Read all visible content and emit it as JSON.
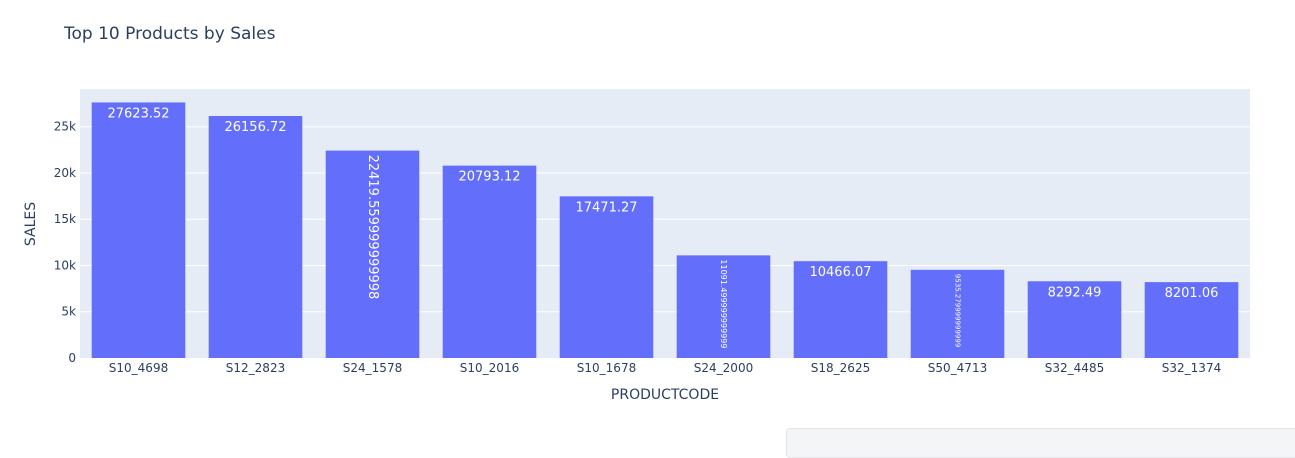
{
  "chart_data": {
    "type": "bar",
    "title": "Top 10 Products by Sales",
    "xlabel": "PRODUCTCODE",
    "ylabel": "SALES",
    "categories": [
      "S10_4698",
      "S12_2823",
      "S24_1578",
      "S10_2016",
      "S10_1678",
      "S24_2000",
      "S18_2625",
      "S50_4713",
      "S32_4485",
      "S32_1374"
    ],
    "values": [
      27623.52,
      26156.72,
      22419.559999999998,
      20793.12,
      17471.27,
      11091.499999999998,
      10466.07,
      9535.279999999999,
      8292.49,
      8201.06
    ],
    "value_labels": [
      "27623.52",
      "26156.72",
      "22419.559999999998",
      "20793.12",
      "17471.27",
      "11091.499999999999",
      "10466.07",
      "9535.279999999999",
      "8292.49",
      "8201.06"
    ],
    "y_ticks": [
      0,
      5000,
      10000,
      15000,
      20000,
      25000
    ],
    "y_tick_labels": [
      "0",
      "5k",
      "10k",
      "15k",
      "20k",
      "25k"
    ],
    "ylim": [
      0,
      29077.39
    ],
    "grid": true,
    "colors": {
      "bar": "#636efa",
      "plot_bg": "#e5ecf6",
      "grid": "#ffffff",
      "text": "#2a3f5f"
    }
  }
}
